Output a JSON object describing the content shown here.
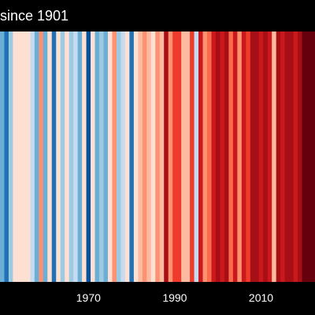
{
  "chart_data": {
    "type": "bar",
    "title": "since 1901",
    "x_range": [
      1950,
      2022
    ],
    "x_ticks": [
      {
        "value": 1970,
        "label": "1970"
      },
      {
        "value": 1990,
        "label": "1990"
      },
      {
        "value": 2010,
        "label": "2010"
      }
    ],
    "stripes": [
      {
        "year": 1950,
        "color": "#6baed6"
      },
      {
        "year": 1951,
        "color": "#2171b5"
      },
      {
        "year": 1952,
        "color": "#9ecae1"
      },
      {
        "year": 1953,
        "color": "#fee0d2"
      },
      {
        "year": 1954,
        "color": "#fee0d2"
      },
      {
        "year": 1955,
        "color": "#fee0d2"
      },
      {
        "year": 1956,
        "color": "#fee0d2"
      },
      {
        "year": 1957,
        "color": "#c6dbef"
      },
      {
        "year": 1958,
        "color": "#6baed6"
      },
      {
        "year": 1959,
        "color": "#fc9272"
      },
      {
        "year": 1960,
        "color": "#6baed6"
      },
      {
        "year": 1961,
        "color": "#fee0d2"
      },
      {
        "year": 1962,
        "color": "#2171b5"
      },
      {
        "year": 1963,
        "color": "#fee0d2"
      },
      {
        "year": 1964,
        "color": "#9ecae1"
      },
      {
        "year": 1965,
        "color": "#fee0d2"
      },
      {
        "year": 1966,
        "color": "#9ecae1"
      },
      {
        "year": 1967,
        "color": "#c6dbef"
      },
      {
        "year": 1968,
        "color": "#6baed6"
      },
      {
        "year": 1969,
        "color": "#fee0d2"
      },
      {
        "year": 1970,
        "color": "#08519c"
      },
      {
        "year": 1971,
        "color": "#fee0d2"
      },
      {
        "year": 1972,
        "color": "#6baed6"
      },
      {
        "year": 1973,
        "color": "#9ecae1"
      },
      {
        "year": 1974,
        "color": "#6baed6"
      },
      {
        "year": 1975,
        "color": "#fee0d2"
      },
      {
        "year": 1976,
        "color": "#fc9272"
      },
      {
        "year": 1977,
        "color": "#9ecae1"
      },
      {
        "year": 1978,
        "color": "#c6dbef"
      },
      {
        "year": 1979,
        "color": "#fee0d2"
      },
      {
        "year": 1980,
        "color": "#2171b5"
      },
      {
        "year": 1981,
        "color": "#fee0d2"
      },
      {
        "year": 1982,
        "color": "#fcbba1"
      },
      {
        "year": 1983,
        "color": "#fc9272"
      },
      {
        "year": 1984,
        "color": "#fcbba1"
      },
      {
        "year": 1985,
        "color": "#fee0d2"
      },
      {
        "year": 1986,
        "color": "#fc9272"
      },
      {
        "year": 1987,
        "color": "#fcbba1"
      },
      {
        "year": 1988,
        "color": "#a50f15"
      },
      {
        "year": 1989,
        "color": "#fc9272"
      },
      {
        "year": 1990,
        "color": "#ef3b2c"
      },
      {
        "year": 1991,
        "color": "#ef3b2c"
      },
      {
        "year": 1992,
        "color": "#fcbba1"
      },
      {
        "year": 1993,
        "color": "#fcbba1"
      },
      {
        "year": 1994,
        "color": "#ef3b2c"
      },
      {
        "year": 1995,
        "color": "#c6dbef"
      },
      {
        "year": 1996,
        "color": "#cb181d"
      },
      {
        "year": 1997,
        "color": "#fc9272"
      },
      {
        "year": 1998,
        "color": "#fb6a4a"
      },
      {
        "year": 1999,
        "color": "#cb181d"
      },
      {
        "year": 2000,
        "color": "#a50f15"
      },
      {
        "year": 2001,
        "color": "#cb181d"
      },
      {
        "year": 2002,
        "color": "#a50f15"
      },
      {
        "year": 2003,
        "color": "#fb6a4a"
      },
      {
        "year": 2004,
        "color": "#cb181d"
      },
      {
        "year": 2005,
        "color": "#fc9272"
      },
      {
        "year": 2006,
        "color": "#cb181d"
      },
      {
        "year": 2007,
        "color": "#ef3b2c"
      },
      {
        "year": 2008,
        "color": "#a50f15"
      },
      {
        "year": 2009,
        "color": "#a50f15"
      },
      {
        "year": 2010,
        "color": "#cb181d"
      },
      {
        "year": 2011,
        "color": "#a50f15"
      },
      {
        "year": 2012,
        "color": "#cb181d"
      },
      {
        "year": 2013,
        "color": "#fcbba1"
      },
      {
        "year": 2014,
        "color": "#a50f15"
      },
      {
        "year": 2015,
        "color": "#cb181d"
      },
      {
        "year": 2016,
        "color": "#a50f15"
      },
      {
        "year": 2017,
        "color": "#a50f15"
      },
      {
        "year": 2018,
        "color": "#cb181d"
      },
      {
        "year": 2019,
        "color": "#a50f15"
      },
      {
        "year": 2020,
        "color": "#67000d"
      },
      {
        "year": 2021,
        "color": "#67000d"
      },
      {
        "year": 2022,
        "color": "#67000d"
      }
    ]
  }
}
